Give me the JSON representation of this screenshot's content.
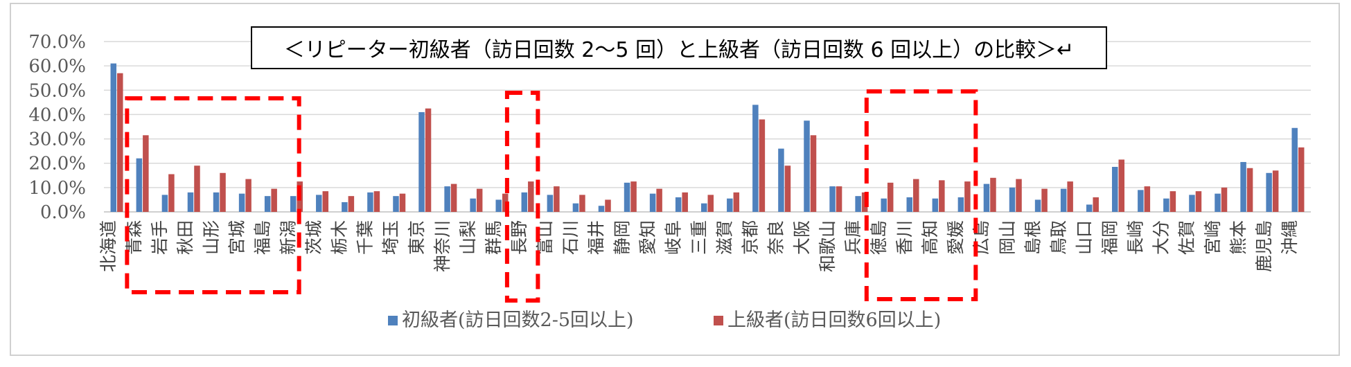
{
  "chart_data": {
    "type": "bar",
    "title": "＜リピーター初級者（訪日回数 2〜5 回）と上級者（訪日回数 6 回以上）の比較＞↵",
    "ylim": [
      0,
      70
    ],
    "yticks": [
      "0.0%",
      "10.0%",
      "20.0%",
      "30.0%",
      "40.0%",
      "50.0%",
      "60.0%",
      "70.0%"
    ],
    "grid": true,
    "legend_position": "bottom",
    "categories": [
      "北海道",
      "青森",
      "岩手",
      "秋田",
      "山形",
      "宮城",
      "福島",
      "新潟",
      "茨城",
      "栃木",
      "千葉",
      "埼玉",
      "東京",
      "神奈川",
      "山梨",
      "群馬",
      "長野",
      "富山",
      "石川",
      "福井",
      "静岡",
      "愛知",
      "岐阜",
      "三重",
      "滋賀",
      "京都",
      "奈良",
      "大阪",
      "和歌山",
      "兵庫",
      "徳島",
      "香川",
      "高知",
      "愛媛",
      "広島",
      "岡山",
      "島根",
      "鳥取",
      "山口",
      "福岡",
      "長崎",
      "大分",
      "佐賀",
      "宮崎",
      "熊本",
      "鹿児島",
      "沖縄"
    ],
    "series": [
      {
        "name": "初級者(訪日回数2-5回以上)",
        "color": "#4f81bd",
        "values": [
          61,
          22,
          7,
          8,
          8,
          7.5,
          6.5,
          6.5,
          7,
          4,
          8,
          6.5,
          41,
          10.5,
          5.5,
          5,
          8,
          7,
          3.5,
          2.5,
          12,
          7.5,
          6,
          3.5,
          5.5,
          44,
          26,
          37.5,
          10.5,
          6.5,
          5.5,
          6,
          5.5,
          6,
          11.5,
          10,
          5,
          9.5,
          3,
          18.5,
          9,
          5.5,
          7,
          7.5,
          20.5,
          16,
          34.5
        ]
      },
      {
        "name": "上級者(訪日回数6回以上)",
        "color": "#c0504d",
        "values": [
          57,
          31.5,
          15.5,
          19,
          16,
          13.5,
          9.5,
          12.5,
          8.5,
          6.5,
          8.5,
          7.5,
          42.5,
          11.5,
          9.5,
          7.5,
          12.5,
          10.5,
          7,
          5,
          12.5,
          9.5,
          8,
          7,
          8,
          38,
          19,
          31.5,
          10.5,
          8,
          12,
          13.5,
          13,
          12.5,
          14,
          13.5,
          9.5,
          12.5,
          6,
          21.5,
          10.5,
          8.5,
          8.5,
          10,
          18,
          17,
          26.5
        ]
      }
    ]
  }
}
